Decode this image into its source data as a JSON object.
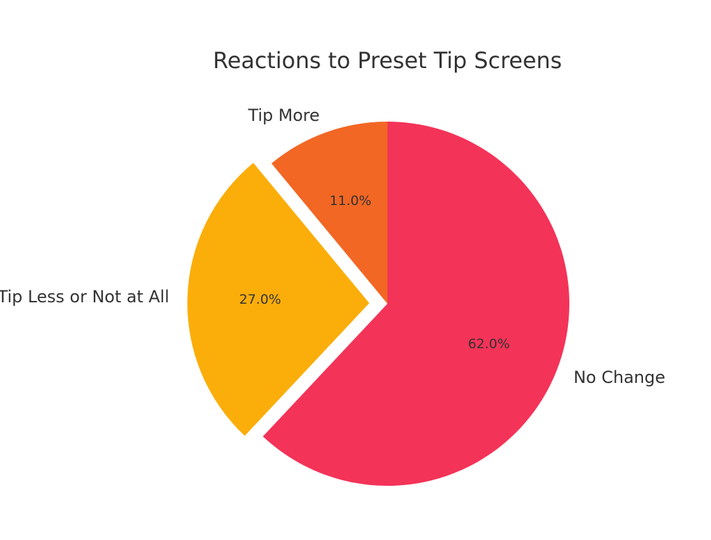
{
  "chart_data": {
    "type": "pie",
    "title": "Reactions to Preset Tip Screens",
    "categories": [
      "No Change",
      "Tip Less or Not at All",
      "Tip More"
    ],
    "values": [
      62.0,
      27.0,
      11.0
    ],
    "value_labels": [
      "62.0%",
      "27.0%",
      "11.0%"
    ],
    "colors": [
      "#f43358",
      "#fbae0a",
      "#f26724"
    ],
    "exploded": [
      false,
      true,
      false
    ],
    "start_angle_deg": 90,
    "direction": "clockwise",
    "legend": "none",
    "grid": false
  }
}
